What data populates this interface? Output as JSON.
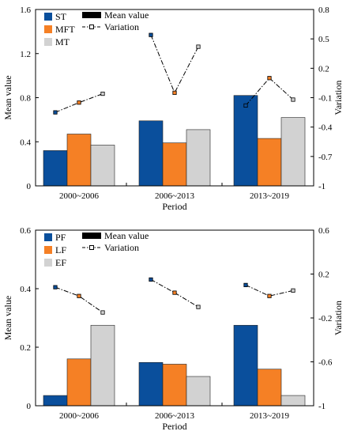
{
  "chart_data": [
    {
      "type": "bar",
      "categories": [
        "2000~2006",
        "2006~2013",
        "2013~2019"
      ],
      "series": [
        {
          "name": "ST",
          "color": "#0a4f9c",
          "values": [
            0.32,
            0.59,
            0.82
          ]
        },
        {
          "name": "MFT",
          "color": "#f58025",
          "values": [
            0.47,
            0.39,
            0.43
          ]
        },
        {
          "name": "MT",
          "color": "#d2d2d2",
          "values": [
            0.37,
            0.51,
            0.62
          ]
        }
      ],
      "variation": {
        "name": "Variation",
        "values": [
          [
            -0.25,
            -0.15,
            -0.06
          ],
          [
            0.54,
            -0.05,
            0.42
          ],
          [
            -0.18,
            0.1,
            -0.12
          ]
        ]
      },
      "legend_bar_label": "Mean value",
      "xlabel": "Period",
      "ylabel": "Mean value",
      "y2label": "Variation",
      "ylim": [
        0,
        1.6
      ],
      "yticks": [
        "0",
        "0.4",
        "0.8",
        "1.2",
        "1.6"
      ],
      "y2lim": [
        -1,
        0.8
      ],
      "y2ticks": [
        "-1",
        "-0.7",
        "-0.4",
        "-0.1",
        "0.2",
        "0.5",
        "0.8"
      ],
      "legend_position": "top-left"
    },
    {
      "type": "bar",
      "categories": [
        "2000~2006",
        "2006~2013",
        "2013~2019"
      ],
      "series": [
        {
          "name": "PF",
          "color": "#0a4f9c",
          "values": [
            0.035,
            0.148,
            0.275
          ]
        },
        {
          "name": "LF",
          "color": "#f58025",
          "values": [
            0.16,
            0.142,
            0.125
          ]
        },
        {
          "name": "EF",
          "color": "#d2d2d2",
          "values": [
            0.275,
            0.1,
            0.035
          ]
        }
      ],
      "variation": {
        "name": "Variation",
        "values": [
          [
            0.08,
            0.0,
            -0.15
          ],
          [
            0.15,
            0.03,
            -0.1
          ],
          [
            0.1,
            0.0,
            0.05
          ]
        ]
      },
      "legend_bar_label": "Mean value",
      "xlabel": "Period",
      "ylabel": "Mean value",
      "y2label": "Variation",
      "ylim": [
        0,
        0.6
      ],
      "yticks": [
        "0",
        "0.2",
        "0.4",
        "0.6"
      ],
      "y2lim": [
        -1,
        0.6
      ],
      "y2ticks": [
        "-1",
        "-0.6",
        "-0.2",
        "0.2",
        "0.6"
      ],
      "legend_position": "top-left"
    }
  ]
}
